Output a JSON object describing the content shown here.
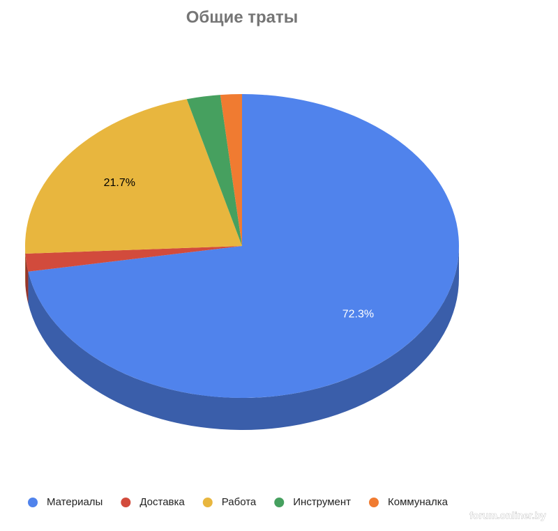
{
  "chart_data": {
    "type": "pie3d",
    "title": "Общие траты",
    "categories": [
      "Материалы",
      "Доставка",
      "Работа",
      "Инструмент",
      "Коммуналка"
    ],
    "values": [
      72.3,
      1.9,
      21.7,
      2.5,
      1.6
    ],
    "value_labels": [
      "72.3%",
      null,
      "21.7%",
      null,
      null
    ],
    "colors": [
      "#5083ec",
      "#d24b3c",
      "#e8b63e",
      "#46a05f",
      "#f07b31"
    ],
    "legend": "bottom"
  },
  "watermark": "forum.onliner.by"
}
